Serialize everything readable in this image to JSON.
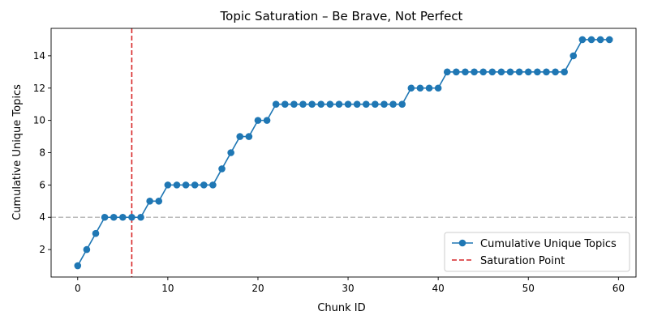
{
  "chart_data": {
    "type": "line",
    "title": "Topic Saturation – Be Brave, Not Perfect",
    "xlabel": "Chunk ID",
    "ylabel": "Cumulative Unique Topics",
    "xlim": [
      -2.95,
      61.95
    ],
    "ylim": [
      0.3,
      15.7
    ],
    "x_ticks": [
      0,
      10,
      20,
      30,
      40,
      50,
      60
    ],
    "y_ticks": [
      2,
      4,
      6,
      8,
      10,
      12,
      14
    ],
    "grid": false,
    "legend_position": "lower-right",
    "series": [
      {
        "name": "Cumulative Unique Topics",
        "color": "#1f77b4",
        "marker": "circle",
        "x": [
          0,
          1,
          2,
          3,
          4,
          5,
          6,
          7,
          8,
          9,
          10,
          11,
          12,
          13,
          14,
          15,
          16,
          17,
          18,
          19,
          20,
          21,
          22,
          23,
          24,
          25,
          26,
          27,
          28,
          29,
          30,
          31,
          32,
          33,
          34,
          35,
          36,
          37,
          38,
          39,
          40,
          41,
          42,
          43,
          44,
          45,
          46,
          47,
          48,
          49,
          50,
          51,
          52,
          53,
          54,
          55,
          56,
          57,
          58,
          59
        ],
        "y": [
          1,
          2,
          3,
          4,
          4,
          4,
          4,
          4,
          5,
          5,
          6,
          6,
          6,
          6,
          6,
          6,
          7,
          8,
          9,
          9,
          10,
          10,
          11,
          11,
          11,
          11,
          11,
          11,
          11,
          11,
          11,
          11,
          11,
          11,
          11,
          11,
          11,
          12,
          12,
          12,
          12,
          13,
          13,
          13,
          13,
          13,
          13,
          13,
          13,
          13,
          13,
          13,
          13,
          13,
          13,
          14,
          15,
          15,
          15,
          15
        ]
      }
    ],
    "reference_lines": [
      {
        "name": "Saturation Point",
        "orientation": "vertical",
        "value": 6,
        "color": "#d62728",
        "style": "dashed",
        "in_legend": true
      },
      {
        "orientation": "horizontal",
        "value": 4,
        "color": "#bbbbbb",
        "style": "dashed",
        "in_legend": false
      }
    ]
  }
}
